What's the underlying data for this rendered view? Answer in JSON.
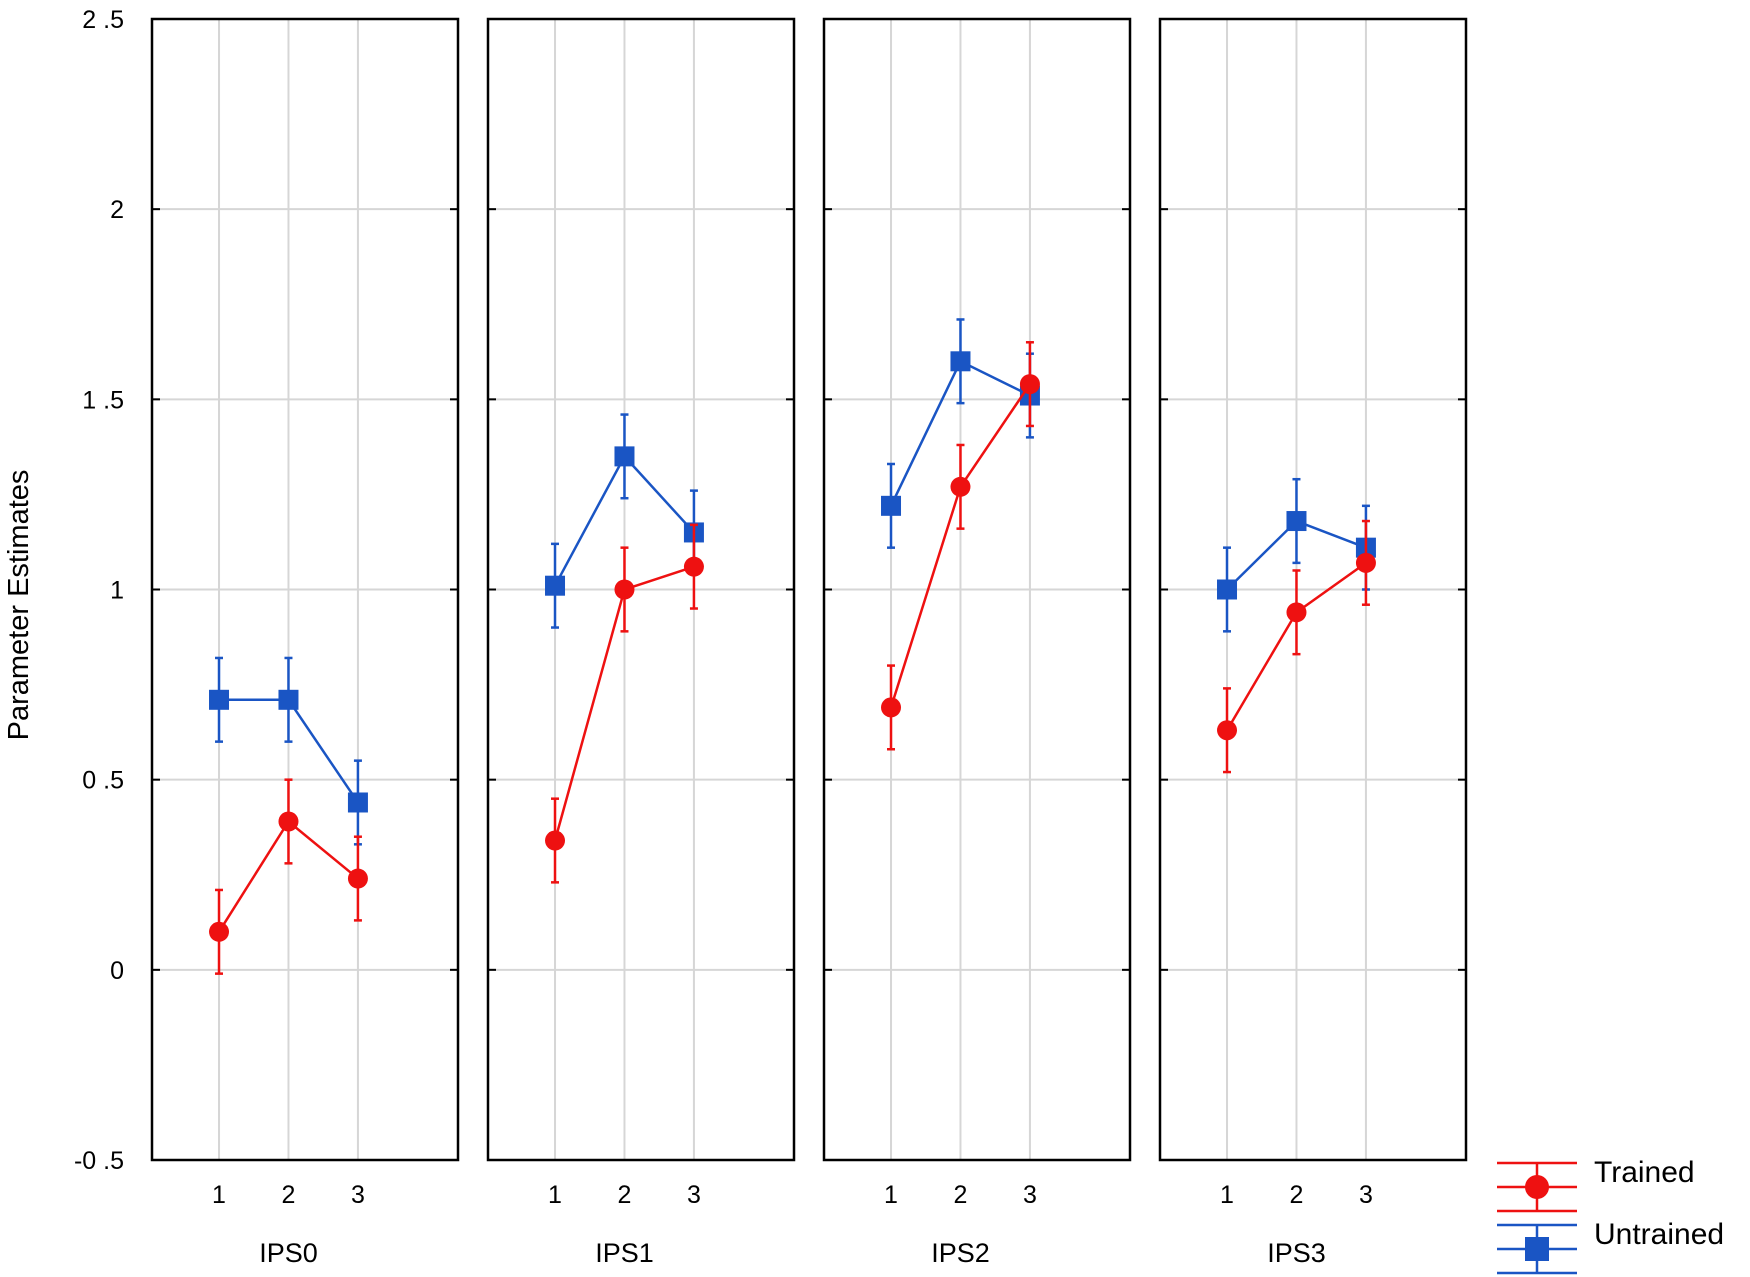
{
  "chart_data": {
    "type": "line",
    "ylabel": "Parameter Estimates",
    "ylim": [
      -0.5,
      2.5
    ],
    "yticks": [
      -0.5,
      0,
      0.5,
      1,
      1.5,
      2,
      2.5
    ],
    "ytick_labels": [
      "-0 .5",
      "0",
      "0 .5",
      "1",
      "1 .5",
      "2",
      "2 .5"
    ],
    "categories": [
      "1",
      "2",
      "3"
    ],
    "grid": true,
    "legend_position": "bottom-right",
    "error_bars": true,
    "legend": [
      {
        "name": "Trained",
        "color": "#ee1111",
        "marker": "circle"
      },
      {
        "name": "Untrained",
        "color": "#1a55c4",
        "marker": "square"
      }
    ],
    "panels": [
      {
        "label": "IPS0",
        "series": [
          {
            "name": "Trained",
            "values": [
              0.1,
              0.39,
              0.24
            ],
            "errors": [
              0.11,
              0.11,
              0.11
            ]
          },
          {
            "name": "Untrained",
            "values": [
              0.71,
              0.71,
              0.44
            ],
            "errors": [
              0.11,
              0.11,
              0.11
            ]
          }
        ]
      },
      {
        "label": "IPS1",
        "series": [
          {
            "name": "Trained",
            "values": [
              0.34,
              1.0,
              1.06
            ],
            "errors": [
              0.11,
              0.11,
              0.11
            ]
          },
          {
            "name": "Untrained",
            "values": [
              1.01,
              1.35,
              1.15
            ],
            "errors": [
              0.11,
              0.11,
              0.11
            ]
          }
        ]
      },
      {
        "label": "IPS2",
        "series": [
          {
            "name": "Trained",
            "values": [
              0.69,
              1.27,
              1.54
            ],
            "errors": [
              0.11,
              0.11,
              0.11
            ]
          },
          {
            "name": "Untrained",
            "values": [
              1.22,
              1.6,
              1.51
            ],
            "errors": [
              0.11,
              0.11,
              0.11
            ]
          }
        ]
      },
      {
        "label": "IPS3",
        "series": [
          {
            "name": "Trained",
            "values": [
              0.63,
              0.94,
              1.07
            ],
            "errors": [
              0.11,
              0.11,
              0.11
            ]
          },
          {
            "name": "Untrained",
            "values": [
              1.0,
              1.18,
              1.11
            ],
            "errors": [
              0.11,
              0.11,
              0.11
            ]
          }
        ]
      }
    ]
  }
}
